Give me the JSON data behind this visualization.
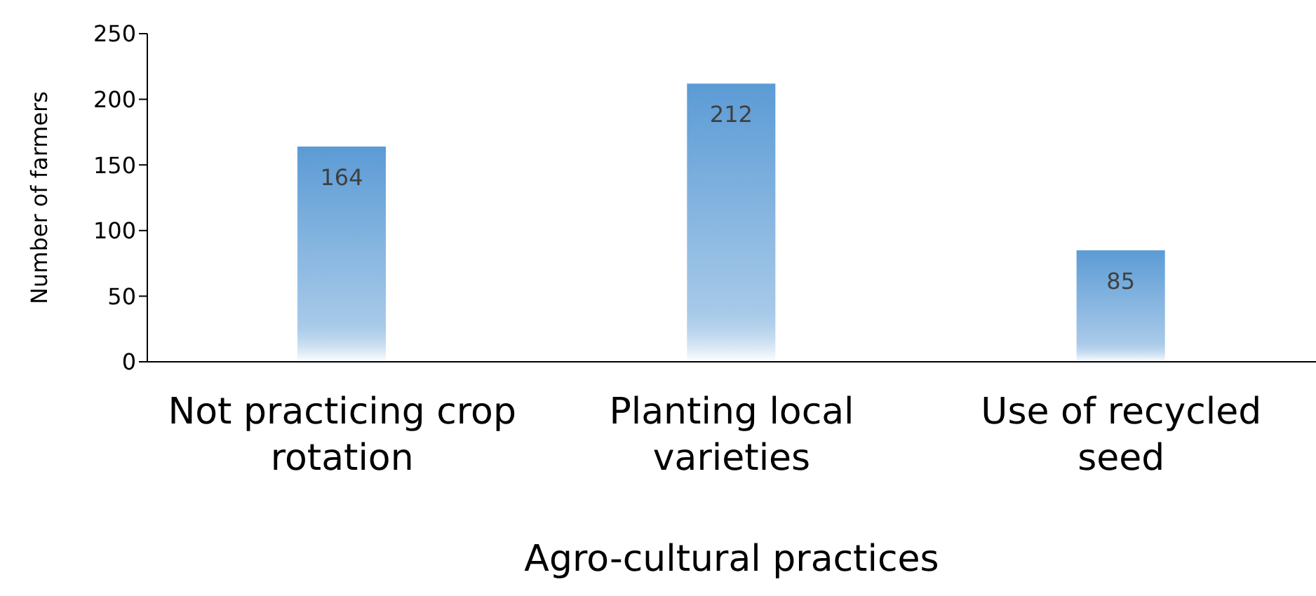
{
  "chart_data": {
    "type": "bar",
    "xlabel": "Agro-cultural practices",
    "ylabel": "Number of farmers",
    "categories": [
      "Not practicing crop rotation",
      "Planting local varieties",
      "Use of recycled seed"
    ],
    "values": [
      164,
      212,
      85
    ],
    "color": "#5b9bd5",
    "ylim": [
      0,
      250
    ],
    "yticks": [
      0,
      50,
      100,
      150,
      200,
      250
    ],
    "grid": false,
    "data_labels": true
  }
}
